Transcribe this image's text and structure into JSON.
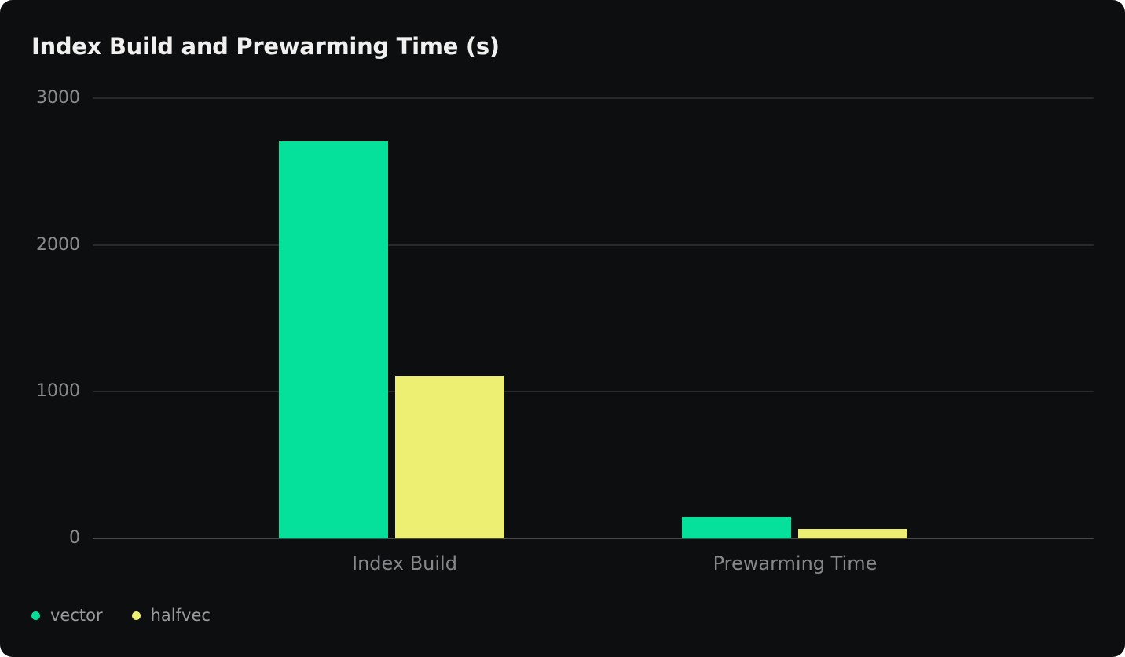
{
  "chart_data": {
    "type": "bar",
    "title": "Index Build and Prewarming Time (s)",
    "categories": [
      "Index Build",
      "Prewarming Time"
    ],
    "series": [
      {
        "name": "vector",
        "color": "#05e19b",
        "values": [
          2705,
          145
        ]
      },
      {
        "name": "halfvec",
        "color": "#edef73",
        "values": [
          1105,
          65
        ]
      }
    ],
    "ylim": [
      0,
      3000
    ],
    "yticks": [
      3000,
      2000,
      1000,
      0
    ],
    "grid": true,
    "legend_position": "bottom-left",
    "xlabel": "",
    "ylabel": ""
  },
  "theme": {
    "page_background": "#ffffff",
    "card_background": "#0d0e0f",
    "grid_color": "#29292b",
    "axis_line_color": "#4a4a4c",
    "title_color": "#f0f0f0",
    "tick_label_color": "#8b8b8e",
    "category_label_color": "#88888c",
    "legend_label_color": "#9a9a9e"
  }
}
